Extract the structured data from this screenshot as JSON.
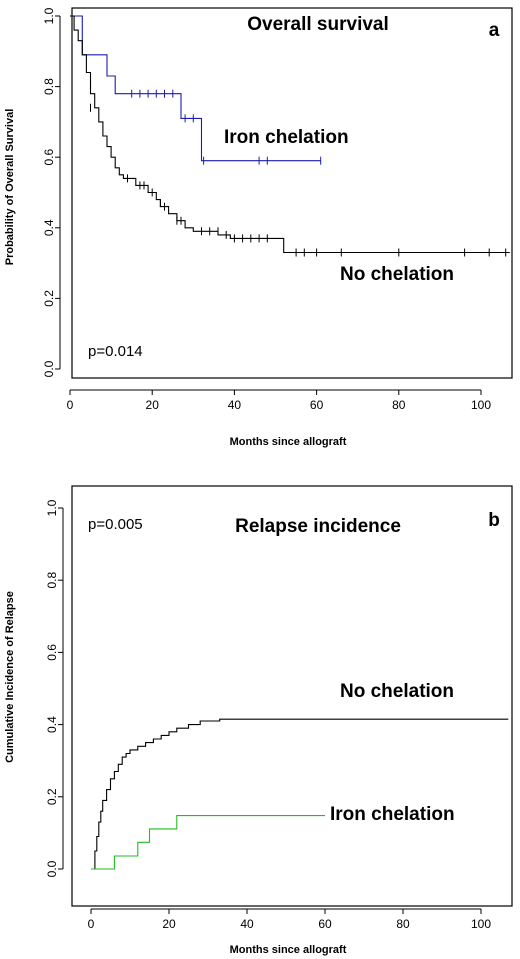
{
  "chart_data": [
    {
      "type": "line",
      "step": true,
      "title": "Overall survival",
      "panel_label": "a",
      "xlabel": "Months since allograft",
      "ylabel": "Probability of Overall Survival",
      "xlim": [
        0,
        108
      ],
      "ylim": [
        0,
        1
      ],
      "x_ticks": [
        "0",
        "20",
        "40",
        "60",
        "80",
        "100"
      ],
      "y_ticks": [
        "0.0",
        "0.2",
        "0.4",
        "0.6",
        "0.8",
        "1.0"
      ],
      "grid": false,
      "annotation": "p=0.014",
      "series": [
        {
          "name": "Iron chelation",
          "color": "#1c1cae",
          "steps": [
            [
              0,
              1.0
            ],
            [
              3,
              0.89
            ],
            [
              9,
              0.83
            ],
            [
              11,
              0.78
            ],
            [
              27,
              0.71
            ],
            [
              32,
              0.59
            ],
            [
              61,
              0.59
            ]
          ],
          "censored": [
            [
              15,
              0.78
            ],
            [
              17,
              0.78
            ],
            [
              19,
              0.78
            ],
            [
              21,
              0.78
            ],
            [
              23,
              0.78
            ],
            [
              25,
              0.78
            ],
            [
              28,
              0.71
            ],
            [
              30,
              0.71
            ],
            [
              32.5,
              0.59
            ],
            [
              46,
              0.59
            ],
            [
              48,
              0.59
            ],
            [
              61,
              0.59
            ]
          ]
        },
        {
          "name": "No chelation",
          "color": "#000000",
          "steps": [
            [
              0,
              1.0
            ],
            [
              1,
              0.96
            ],
            [
              2,
              0.93
            ],
            [
              3,
              0.89
            ],
            [
              4,
              0.84
            ],
            [
              5,
              0.78
            ],
            [
              6,
              0.74
            ],
            [
              7,
              0.7
            ],
            [
              8,
              0.66
            ],
            [
              9,
              0.63
            ],
            [
              10,
              0.6
            ],
            [
              11,
              0.57
            ],
            [
              12,
              0.55
            ],
            [
              13,
              0.54
            ],
            [
              16,
              0.52
            ],
            [
              19,
              0.5
            ],
            [
              21,
              0.48
            ],
            [
              22,
              0.46
            ],
            [
              24,
              0.44
            ],
            [
              26,
              0.42
            ],
            [
              28,
              0.4
            ],
            [
              30,
              0.39
            ],
            [
              36,
              0.38
            ],
            [
              39,
              0.37
            ],
            [
              52,
              0.33
            ],
            [
              107,
              0.33
            ]
          ],
          "censored": [
            [
              5,
              0.74
            ],
            [
              14,
              0.54
            ],
            [
              17,
              0.52
            ],
            [
              18,
              0.52
            ],
            [
              20,
              0.5
            ],
            [
              22,
              0.47
            ],
            [
              23,
              0.46
            ],
            [
              26,
              0.42
            ],
            [
              27,
              0.42
            ],
            [
              32,
              0.39
            ],
            [
              34,
              0.39
            ],
            [
              36,
              0.39
            ],
            [
              38,
              0.38
            ],
            [
              40,
              0.37
            ],
            [
              42,
              0.37
            ],
            [
              44,
              0.37
            ],
            [
              46,
              0.37
            ],
            [
              48,
              0.37
            ],
            [
              55,
              0.33
            ],
            [
              57,
              0.33
            ],
            [
              60,
              0.33
            ],
            [
              66,
              0.33
            ],
            [
              80,
              0.33
            ],
            [
              96,
              0.33
            ],
            [
              102,
              0.33
            ],
            [
              106,
              0.33
            ]
          ]
        }
      ]
    },
    {
      "type": "line",
      "step": true,
      "title": "Relapse incidence",
      "panel_label": "b",
      "xlabel": "Months since allograft",
      "ylabel": "Cumulative Incidence of Relapse",
      "xlim": [
        0,
        108
      ],
      "ylim": [
        0,
        1
      ],
      "x_ticks": [
        "0",
        "20",
        "40",
        "60",
        "80",
        "100"
      ],
      "y_ticks": [
        "0.0",
        "0.2",
        "0.4",
        "0.6",
        "0.8",
        "1.0"
      ],
      "grid": false,
      "annotation": "p=0.005",
      "series": [
        {
          "name": "No chelation",
          "color": "#000000",
          "steps": [
            [
              0,
              0.0
            ],
            [
              1,
              0.05
            ],
            [
              1.5,
              0.09
            ],
            [
              2,
              0.13
            ],
            [
              2.5,
              0.16
            ],
            [
              3,
              0.19
            ],
            [
              4,
              0.22
            ],
            [
              5,
              0.25
            ],
            [
              6,
              0.27
            ],
            [
              7,
              0.29
            ],
            [
              8,
              0.31
            ],
            [
              9,
              0.32
            ],
            [
              10,
              0.33
            ],
            [
              12,
              0.34
            ],
            [
              14,
              0.35
            ],
            [
              16,
              0.36
            ],
            [
              18,
              0.37
            ],
            [
              20,
              0.38
            ],
            [
              22,
              0.39
            ],
            [
              25,
              0.4
            ],
            [
              28,
              0.41
            ],
            [
              33,
              0.415
            ],
            [
              107,
              0.415
            ]
          ],
          "censored": []
        },
        {
          "name": "Iron chelation",
          "color": "#22bb22",
          "steps": [
            [
              0,
              0.0
            ],
            [
              6,
              0.036
            ],
            [
              12,
              0.074
            ],
            [
              15,
              0.111
            ],
            [
              22,
              0.148
            ],
            [
              60,
              0.148
            ]
          ],
          "censored": []
        }
      ]
    }
  ]
}
